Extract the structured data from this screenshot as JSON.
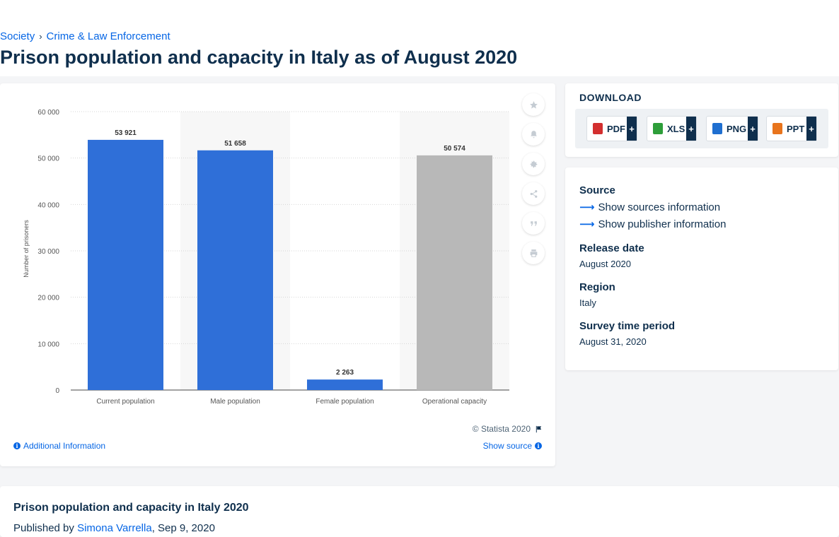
{
  "breadcrumb": {
    "items": [
      "Society",
      "Crime & Law Enforcement"
    ],
    "separator": "›"
  },
  "page_title": "Prison population and capacity in Italy as of August 2020",
  "chart_data": {
    "type": "bar",
    "categories": [
      "Current population",
      "Male population",
      "Female population",
      "Operational capacity"
    ],
    "values": [
      53921,
      51658,
      2263,
      50574
    ],
    "value_labels": [
      "53 921",
      "51 658",
      "2 263",
      "50 574"
    ],
    "bar_colors": [
      "#2f6fd8",
      "#2f6fd8",
      "#2f6fd8",
      "#b8b8b8"
    ],
    "ylabel": "Number of prisoners",
    "ylim": [
      0,
      60000
    ],
    "yticks": [
      0,
      10000,
      20000,
      30000,
      40000,
      50000,
      60000
    ],
    "ytick_labels": [
      "0",
      "10 000",
      "20 000",
      "30 000",
      "40 000",
      "50 000",
      "60 000"
    ],
    "grid": true
  },
  "chart_footer": {
    "copyright": "© Statista 2020",
    "additional_info": "Additional Information",
    "show_source": "Show source"
  },
  "tools": [
    "star-icon",
    "bell-icon",
    "gear-icon",
    "share-icon",
    "quote-icon",
    "print-icon"
  ],
  "download": {
    "title": "DOWNLOAD",
    "buttons": [
      {
        "label": "PDF",
        "color": "#d32f2f"
      },
      {
        "label": "XLS",
        "color": "#2e9e3a"
      },
      {
        "label": "PNG",
        "color": "#1f6fd0"
      },
      {
        "label": "PPT",
        "color": "#e8741c"
      }
    ],
    "plus": "+"
  },
  "meta": {
    "source_heading": "Source",
    "show_sources": "Show sources information",
    "show_publisher": "Show publisher information",
    "release_heading": "Release date",
    "release_value": "August 2020",
    "region_heading": "Region",
    "region_value": "Italy",
    "period_heading": "Survey time period",
    "period_value": "August 31, 2020"
  },
  "bottom": {
    "title": "Prison population and capacity in Italy 2020",
    "published_prefix": "Published by",
    "author": "Simona Varrella",
    "date": ", Sep 9, 2020"
  }
}
